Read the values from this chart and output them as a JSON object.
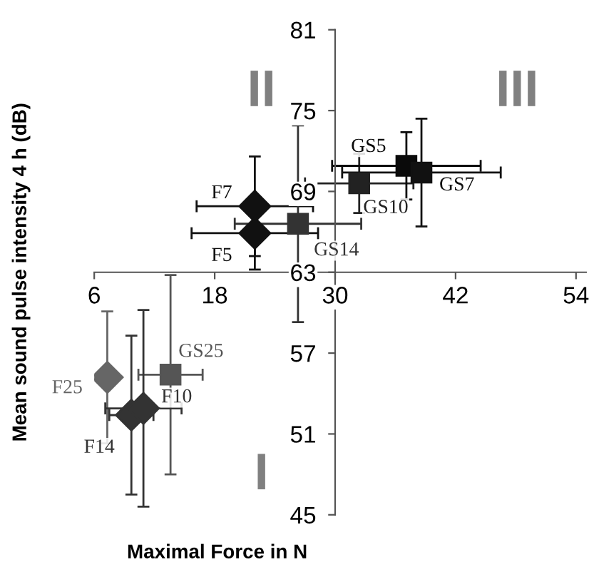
{
  "chart_data": {
    "type": "scatter",
    "xlabel": "Maximal Force in N",
    "ylabel": "Mean sound pulse intensity 4 h (dB)",
    "xlim": [
      6,
      55
    ],
    "ylim": [
      45,
      81
    ],
    "xticks": [
      6,
      18,
      30,
      42,
      54
    ],
    "yticks": [
      45,
      51,
      57,
      63,
      69,
      75,
      81
    ],
    "grid": false,
    "legend": false,
    "series": [
      {
        "name": "F7",
        "marker": "diamond",
        "color": "#111111",
        "x": [
          22.0
        ],
        "values": [
          67.9
        ],
        "errors": [
          3.7
        ],
        "xerrors": [
          5.8
        ]
      },
      {
        "name": "F5",
        "marker": "diamond",
        "color": "#111111",
        "x": [
          22.0
        ],
        "values": [
          65.9
        ],
        "errors": [
          2.7
        ],
        "xerrors": [
          6.3
        ]
      },
      {
        "name": "GS14",
        "marker": "square",
        "color": "#333333",
        "x": [
          26.3
        ],
        "values": [
          66.6
        ],
        "errors": [
          7.3
        ],
        "xerrors": [
          6.3
        ]
      },
      {
        "name": "GS10",
        "marker": "square",
        "color": "#222222",
        "x": [
          32.4
        ],
        "values": [
          69.6
        ],
        "errors": [
          2.2
        ],
        "xerrors": [
          5.4
        ]
      },
      {
        "name": "GS5",
        "marker": "square",
        "color": "#0a0a0a",
        "x": [
          37.1
        ],
        "values": [
          70.9
        ],
        "errors": [
          2.5
        ],
        "xerrors": [
          7.4
        ]
      },
      {
        "name": "GS7",
        "marker": "square",
        "color": "#111111",
        "x": [
          38.6
        ],
        "values": [
          70.4
        ],
        "errors": [
          4.0
        ],
        "xerrors": [
          7.9
        ]
      },
      {
        "name": "F25",
        "marker": "diamond",
        "color": "#666666",
        "x": [
          7.3
        ],
        "values": [
          55.2
        ],
        "errors": [
          4.9
        ],
        "xerrors": [
          null
        ]
      },
      {
        "name": "GS25",
        "marker": "square",
        "color": "#555555",
        "x": [
          13.6
        ],
        "values": [
          55.4
        ],
        "errors": [
          7.4
        ],
        "xerrors": [
          3.2
        ]
      },
      {
        "name": "F14",
        "marker": "diamond",
        "color": "#333333",
        "x": [
          9.7
        ],
        "values": [
          52.4
        ],
        "errors": [
          5.9
        ],
        "xerrors": [
          2.2
        ]
      },
      {
        "name": "F10",
        "marker": "diamond",
        "color": "#333333",
        "x": [
          10.9
        ],
        "values": [
          52.9
        ],
        "errors": [
          7.3
        ],
        "xerrors": [
          3.8
        ]
      }
    ],
    "annotations": [
      "I",
      "II",
      "III"
    ]
  }
}
